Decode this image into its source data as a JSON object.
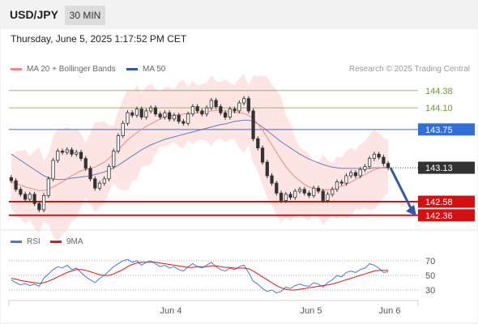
{
  "header": {
    "symbol": "USD/JPY",
    "timeframe": "30 MIN",
    "datetime": "Thursday, June 5, 2025 1:17:52 PM CET",
    "copyright": "Research © 2025 Trading Central"
  },
  "legend": {
    "ma20": {
      "label": "MA 20 + Bollinger Bands",
      "color": "#f08a86"
    },
    "ma50": {
      "label": "MA 50",
      "color": "#2f5aa8"
    },
    "rsi": {
      "label": "RSI",
      "color": "#4a78d6"
    },
    "ma9": {
      "label": "9MA",
      "color": "#e11515"
    }
  },
  "chart_data": [
    {
      "type": "candlestick",
      "symbol": "USD/JPY",
      "timeframe": "30 MIN",
      "x_labels": [
        "Jun 4",
        "Jun 5",
        "Jun 6"
      ],
      "close": [
        142.92,
        142.78,
        142.7,
        142.62,
        142.7,
        142.55,
        142.45,
        142.68,
        142.95,
        143.25,
        143.4,
        143.38,
        143.42,
        143.35,
        143.38,
        143.28,
        143.12,
        142.95,
        142.8,
        142.88,
        142.95,
        143.15,
        143.4,
        143.65,
        143.85,
        144.02,
        143.98,
        144.08,
        143.95,
        144.05,
        144.1,
        144.0,
        143.95,
        144.02,
        143.92,
        143.98,
        143.88,
        143.85,
        144.0,
        144.12,
        144.05,
        144.0,
        144.1,
        144.22,
        144.12,
        144.02,
        143.95,
        144.08,
        144.05,
        144.18,
        144.25,
        144.05,
        143.6,
        143.45,
        143.22,
        143.0,
        142.88,
        142.72,
        142.6,
        142.7,
        142.65,
        142.75,
        142.78,
        142.72,
        142.68,
        142.8,
        142.75,
        142.6,
        142.7,
        142.78,
        142.9,
        142.88,
        143.0,
        143.05,
        143.0,
        143.1,
        143.15,
        143.28,
        143.35,
        143.3,
        143.2,
        143.13
      ],
      "ma20": [
        142.9,
        142.88,
        142.85,
        142.82,
        142.8,
        142.78,
        142.76,
        142.76,
        142.78,
        142.82,
        142.86,
        142.9,
        142.95,
        143.0,
        143.04,
        143.08,
        143.1,
        143.12,
        143.14,
        143.18,
        143.22,
        143.28,
        143.35,
        143.42,
        143.5,
        143.58,
        143.64,
        143.7,
        143.75,
        143.8,
        143.84,
        143.88,
        143.92,
        143.95,
        143.97,
        143.98,
        143.99,
        144.0,
        144.01,
        144.02,
        144.02,
        144.03,
        144.04,
        144.05,
        144.06,
        144.06,
        144.05,
        144.04,
        144.03,
        144.02,
        144.01,
        143.98,
        143.92,
        143.84,
        143.74,
        143.62,
        143.5,
        143.38,
        143.26,
        143.15,
        143.06,
        142.98,
        142.92,
        142.86,
        142.82,
        142.8,
        142.78,
        142.77,
        142.77,
        142.78,
        142.8,
        142.83,
        142.86,
        142.9,
        142.94,
        142.98,
        143.02,
        143.06,
        143.1,
        143.12,
        143.14,
        143.15
      ],
      "ma50": [
        143.35,
        143.3,
        143.25,
        143.2,
        143.15,
        143.1,
        143.05,
        143.0,
        142.97,
        142.95,
        142.94,
        142.94,
        142.95,
        142.96,
        142.97,
        142.98,
        142.99,
        143.0,
        143.02,
        143.04,
        143.06,
        143.09,
        143.13,
        143.17,
        143.22,
        143.27,
        143.32,
        143.37,
        143.42,
        143.46,
        143.5,
        143.53,
        143.56,
        143.59,
        143.61,
        143.63,
        143.65,
        143.67,
        143.69,
        143.71,
        143.73,
        143.75,
        143.77,
        143.79,
        143.81,
        143.83,
        143.84,
        143.86,
        143.88,
        143.89,
        143.9,
        143.9,
        143.88,
        143.84,
        143.79,
        143.73,
        143.67,
        143.61,
        143.55,
        143.5,
        143.45,
        143.4,
        143.35,
        143.31,
        143.27,
        143.24,
        143.21,
        143.18,
        143.16,
        143.14,
        143.13,
        143.12,
        143.12,
        143.12,
        143.12,
        143.12,
        143.12,
        143.12,
        143.13,
        143.13,
        143.13,
        143.13
      ],
      "levels": [
        {
          "label": "144.38",
          "value": 144.38,
          "kind": "resistance",
          "color": "#6a9e2a"
        },
        {
          "label": "144.10",
          "value": 144.1,
          "kind": "resistance",
          "color": "#6a9e2a"
        },
        {
          "label": "143.75",
          "value": 143.75,
          "kind": "pivot",
          "color": "#2f6fd6"
        },
        {
          "label": "143.13",
          "value": 143.13,
          "kind": "last",
          "color": "#333333"
        },
        {
          "label": "142.58",
          "value": 142.58,
          "kind": "target",
          "color": "#d41111"
        },
        {
          "label": "142.36",
          "value": 142.36,
          "kind": "target",
          "color": "#d41111"
        }
      ],
      "forecast_arrow": {
        "from": 143.13,
        "to": 142.4,
        "direction": "down"
      },
      "ylim": [
        142.2,
        144.6
      ]
    },
    {
      "type": "line",
      "title": "RSI",
      "y_ticks": [
        "70",
        "50",
        "30"
      ],
      "ylim": [
        20,
        80
      ],
      "series": [
        {
          "name": "RSI",
          "values": [
            44,
            40,
            37,
            39,
            36,
            38,
            35,
            46,
            52,
            58,
            62,
            60,
            64,
            58,
            60,
            54,
            48,
            44,
            40,
            46,
            50,
            56,
            62,
            66,
            70,
            72,
            68,
            70,
            64,
            68,
            70,
            66,
            62,
            64,
            60,
            62,
            58,
            56,
            62,
            66,
            62,
            60,
            64,
            68,
            62,
            58,
            56,
            60,
            58,
            62,
            64,
            54,
            42,
            38,
            32,
            28,
            30,
            26,
            28,
            34,
            32,
            36,
            38,
            36,
            35,
            40,
            38,
            34,
            40,
            44,
            50,
            48,
            54,
            56,
            54,
            58,
            60,
            66,
            64,
            60,
            54,
            55
          ]
        },
        {
          "name": "9MA",
          "values": [
            46,
            45,
            43,
            42,
            41,
            40,
            39,
            40,
            42,
            45,
            48,
            51,
            54,
            56,
            58,
            58,
            57,
            55,
            53,
            51,
            50,
            50,
            52,
            55,
            58,
            62,
            65,
            67,
            68,
            68,
            68,
            68,
            67,
            66,
            65,
            64,
            63,
            62,
            61,
            61,
            62,
            62,
            62,
            63,
            63,
            62,
            61,
            61,
            60,
            60,
            60,
            59,
            56,
            52,
            48,
            44,
            40,
            36,
            33,
            31,
            30,
            30,
            31,
            32,
            33,
            34,
            35,
            36,
            37,
            38,
            40,
            42,
            44,
            46,
            48,
            50,
            52,
            54,
            56,
            57,
            57,
            57
          ]
        }
      ]
    }
  ]
}
